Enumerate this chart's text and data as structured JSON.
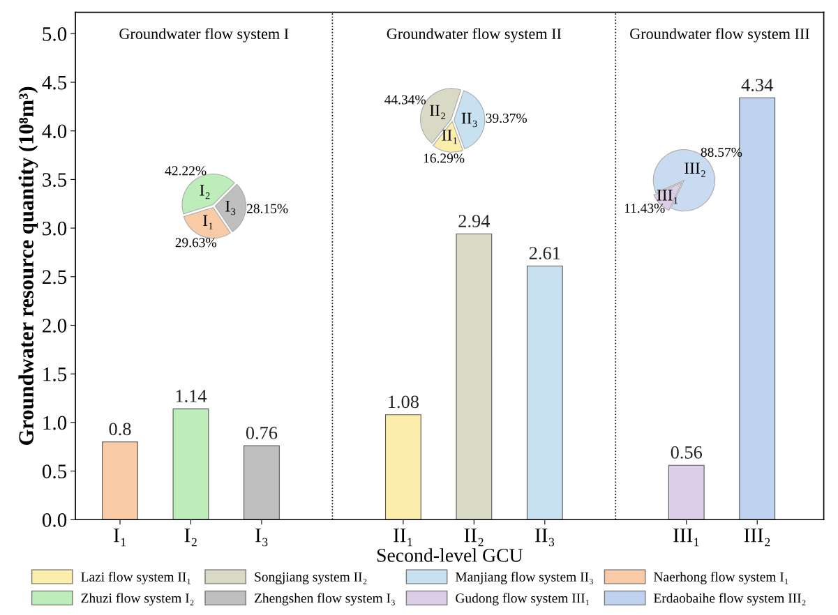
{
  "chart_data": [
    {
      "type": "bar",
      "xlabel": "Second-level GCU",
      "ylabel": "Groundwater resource quantity (10⁸m³)",
      "categories": [
        "I₁",
        "I₂",
        "I₃",
        null,
        "II₁",
        "II₂",
        "II₃",
        null,
        "III₁",
        "III₂"
      ],
      "ylim": [
        0,
        5.22
      ],
      "yticks": [
        {
          "value": 0,
          "label": "0.0"
        },
        {
          "value": 0.5,
          "label": "0.5"
        },
        {
          "value": 1,
          "label": "1.0"
        },
        {
          "value": 1.5,
          "label": "1.5"
        },
        {
          "value": 2,
          "label": "2.0"
        },
        {
          "value": 2.5,
          "label": "2.5"
        },
        {
          "value": 3,
          "label": "3.0"
        },
        {
          "value": 3.5,
          "label": "3.5"
        },
        {
          "value": 4,
          "label": "4.0"
        },
        {
          "value": 4.5,
          "label": "4.5"
        },
        {
          "value": 5,
          "label": "5.0"
        }
      ],
      "series": [
        {
          "name": "Lazi flow system II₁",
          "color": "#fbedac",
          "values": [
            null,
            null,
            null,
            null,
            1.08,
            null,
            null,
            null,
            null,
            null
          ]
        },
        {
          "name": "Songjiang system II₂",
          "color": "#d9dac6",
          "values": [
            null,
            null,
            null,
            null,
            null,
            2.94,
            null,
            null,
            null,
            null
          ]
        },
        {
          "name": "Manjiang flow system II₃",
          "color": "#c8e1f1",
          "values": [
            null,
            null,
            null,
            null,
            null,
            null,
            2.61,
            null,
            null,
            null
          ]
        },
        {
          "name": "Naerhong flow system I₁",
          "color": "#f9caa6",
          "values": [
            0.8,
            null,
            null,
            null,
            null,
            null,
            null,
            null,
            null,
            null
          ]
        },
        {
          "name": "Zhuzi flow system I₂",
          "color": "#bdeeb9",
          "values": [
            null,
            1.14,
            null,
            null,
            null,
            null,
            null,
            null,
            null,
            null
          ]
        },
        {
          "name": "Zhengshen flow system I₃",
          "color": "#bfbfbf",
          "values": [
            null,
            null,
            0.76,
            null,
            null,
            null,
            null,
            null,
            null,
            null
          ]
        },
        {
          "name": "Gudong flow system III₁",
          "color": "#dccde6",
          "values": [
            null,
            null,
            null,
            null,
            null,
            null,
            null,
            null,
            0.56,
            null
          ]
        },
        {
          "name": "Erdaobaihe flow system III₂",
          "color": "#bfd2ef",
          "values": [
            null,
            null,
            null,
            null,
            null,
            null,
            null,
            null,
            null,
            4.34
          ]
        }
      ],
      "data_labels": true,
      "annotations": [
        "Groundwater flow system I",
        "Groundwater flow system II",
        "Groundwater flow system III"
      ],
      "legend": "bottom"
    },
    {
      "type": "pie",
      "categories": [
        "I₁",
        "I₂",
        "I₃"
      ],
      "values": [
        29.63,
        42.22,
        28.15
      ],
      "colors": [
        "#f9caa6",
        "#bdeeb9",
        "#bfbfbf"
      ],
      "value_labels": [
        "29.63%",
        "42.22%",
        "28.15%"
      ]
    },
    {
      "type": "pie",
      "categories": [
        "II₁",
        "II₂",
        "II₃"
      ],
      "values": [
        16.29,
        44.34,
        39.37
      ],
      "colors": [
        "#fbedac",
        "#d9dac6",
        "#c8e1f1"
      ],
      "value_labels": [
        "16.29%",
        "44.34%",
        "39.37%"
      ]
    },
    {
      "type": "pie",
      "categories": [
        "III₁",
        "III₂"
      ],
      "values": [
        11.43,
        88.57
      ],
      "colors": [
        "#dccde6",
        "#c8dbf1"
      ],
      "value_labels": [
        "11.43%",
        "88.57%"
      ]
    }
  ]
}
